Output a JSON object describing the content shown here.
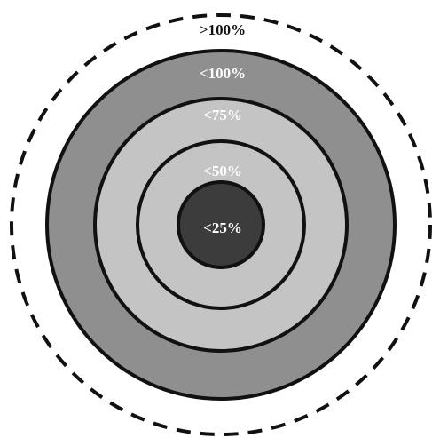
{
  "diagram": {
    "rings": [
      {
        "label": ">100%",
        "fill": "#ffffff",
        "stroke": "#111111",
        "dashed": true,
        "label_color": "#111111"
      },
      {
        "label": "<100%",
        "fill": "#8f8f8f",
        "stroke": "#111111",
        "dashed": false,
        "label_color": "#ffffff"
      },
      {
        "label": "<75%",
        "fill": "#c4c4c4",
        "stroke": "#111111",
        "dashed": false,
        "label_color": "#ffffff"
      },
      {
        "label": "<50%",
        "fill": "#c4c4c4",
        "stroke": "#111111",
        "dashed": false,
        "label_color": "#ffffff"
      },
      {
        "label": "<25%",
        "fill": "#3c3c3c",
        "stroke": "#111111",
        "dashed": false,
        "label_color": "#ffffff"
      }
    ]
  }
}
